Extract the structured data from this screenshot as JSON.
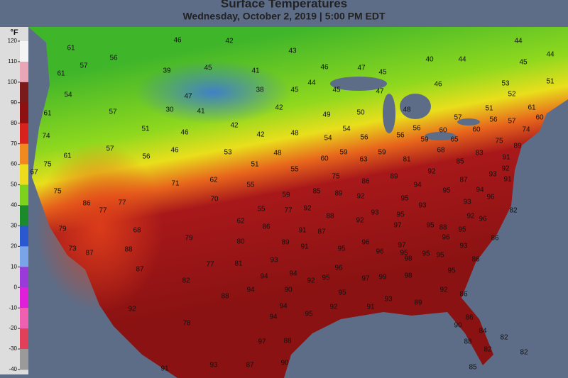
{
  "header": {
    "title": "Surface Temperatures",
    "subtitle": "Wednesday, October 2, 2019 | 5:00 PM EDT"
  },
  "legend": {
    "unit": "°F",
    "ticks": [
      120,
      110,
      100,
      90,
      80,
      70,
      60,
      50,
      40,
      30,
      20,
      10,
      0,
      -10,
      -20,
      -30,
      -40
    ]
  },
  "map": {
    "labels": [
      61,
      57,
      56,
      46,
      42,
      43,
      40,
      44,
      44,
      44,
      45,
      61,
      39,
      45,
      41,
      46,
      47,
      45,
      44,
      45,
      45,
      38,
      47,
      46,
      53,
      51,
      52,
      54,
      47,
      30,
      41,
      57,
      61,
      42,
      49,
      50,
      48,
      51,
      61,
      57,
      56,
      60,
      42,
      51,
      42,
      48,
      54,
      74,
      54,
      56,
      56,
      56,
      60,
      60,
      57,
      74,
      75,
      65,
      46,
      57,
      46,
      53,
      48,
      59,
      68,
      83,
      89,
      61,
      56,
      59,
      63,
      59,
      60,
      81,
      85,
      91,
      75,
      67,
      51,
      55,
      92,
      93,
      92,
      91,
      87,
      62,
      71,
      55,
      75,
      86,
      89,
      94,
      75,
      70,
      59,
      85,
      89,
      92,
      95,
      95,
      94,
      96,
      86,
      77,
      77,
      55,
      77,
      92,
      93,
      93,
      82,
      62,
      88,
      93,
      95,
      92,
      96,
      79,
      68,
      86,
      91,
      87,
      92,
      97,
      95,
      88,
      95,
      79,
      80,
      89,
      91,
      96,
      97,
      96,
      93,
      86,
      73,
      87,
      88,
      95,
      96,
      95,
      95,
      95,
      93,
      81,
      77,
      87,
      94,
      96,
      98,
      95,
      86,
      82,
      92,
      95,
      97,
      99,
      98,
      94,
      88,
      94,
      90,
      95,
      93,
      89,
      92,
      86,
      92,
      94,
      92,
      91,
      86,
      94,
      78,
      95,
      90,
      84,
      97,
      88,
      88,
      82,
      82,
      82,
      91,
      93,
      87,
      90,
      85
    ]
  }
}
